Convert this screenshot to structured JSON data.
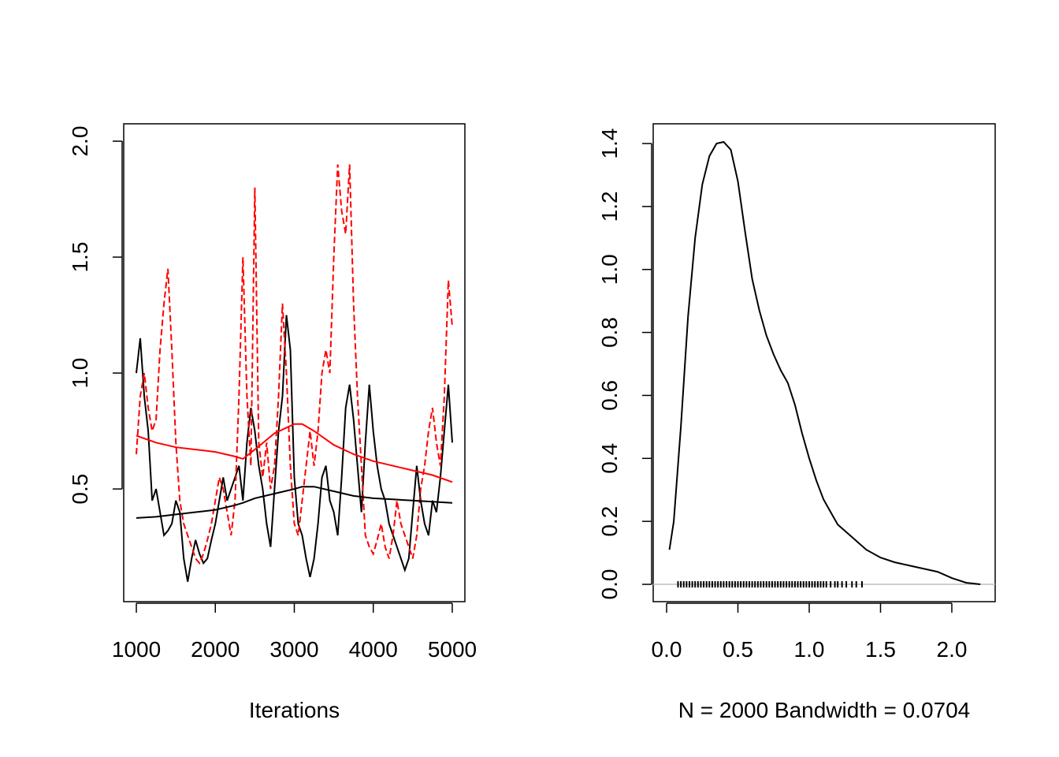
{
  "chart_data": [
    {
      "type": "line",
      "xlabel": "Iterations",
      "xlim": [
        840,
        5160
      ],
      "ylim": [
        0.014,
        2.075
      ],
      "xticks": [
        1000,
        2000,
        3000,
        4000,
        5000
      ],
      "yticks": [
        0.5,
        {
          "value": 1,
          "label": "1.0"
        },
        1.5,
        {
          "value": 2,
          "label": "2.0"
        }
      ],
      "x": [
        1000,
        1050,
        1100,
        1150,
        1200,
        1250,
        1300,
        1350,
        1400,
        1450,
        1500,
        1550,
        1600,
        1650,
        1700,
        1750,
        1800,
        1850,
        1900,
        1950,
        2000,
        2050,
        2100,
        2150,
        2200,
        2250,
        2300,
        2350,
        2400,
        2450,
        2500,
        2550,
        2600,
        2650,
        2700,
        2750,
        2800,
        2850,
        2900,
        2950,
        3000,
        3050,
        3100,
        3150,
        3200,
        3250,
        3300,
        3350,
        3400,
        3450,
        3500,
        3550,
        3600,
        3650,
        3700,
        3750,
        3800,
        3850,
        3900,
        3950,
        4000,
        4050,
        4100,
        4150,
        4200,
        4250,
        4300,
        4350,
        4400,
        4450,
        4500,
        4550,
        4600,
        4650,
        4700,
        4750,
        4800,
        4850,
        4900,
        4950,
        5000
      ],
      "series": [
        {
          "color": "#000000",
          "linestyle": "solid",
          "values": [
            1.0,
            1.15,
            0.9,
            0.75,
            0.45,
            0.5,
            0.4,
            0.3,
            0.32,
            0.35,
            0.45,
            0.4,
            0.2,
            0.1,
            0.2,
            0.28,
            0.22,
            0.18,
            0.2,
            0.28,
            0.35,
            0.45,
            0.55,
            0.45,
            0.5,
            0.55,
            0.6,
            0.45,
            0.7,
            0.85,
            0.75,
            0.6,
            0.5,
            0.35,
            0.25,
            0.5,
            0.75,
            0.9,
            1.25,
            1.1,
            0.55,
            0.35,
            0.3,
            0.2,
            0.12,
            0.2,
            0.35,
            0.55,
            0.6,
            0.45,
            0.4,
            0.3,
            0.55,
            0.85,
            0.95,
            0.8,
            0.6,
            0.4,
            0.7,
            0.95,
            0.75,
            0.6,
            0.5,
            0.45,
            0.35,
            0.3,
            0.25,
            0.2,
            0.15,
            0.2,
            0.4,
            0.6,
            0.45,
            0.35,
            0.3,
            0.45,
            0.4,
            0.55,
            0.75,
            0.95,
            0.7
          ]
        },
        {
          "color": "#ff0000",
          "linestyle": "dashed",
          "values": [
            0.65,
            0.9,
            1.0,
            0.85,
            0.75,
            0.8,
            1.1,
            1.3,
            1.45,
            1.1,
            0.7,
            0.45,
            0.35,
            0.3,
            0.25,
            0.2,
            0.18,
            0.22,
            0.28,
            0.35,
            0.45,
            0.55,
            0.5,
            0.4,
            0.3,
            0.45,
            0.9,
            1.5,
            0.9,
            0.6,
            1.8,
            0.7,
            0.55,
            0.7,
            0.5,
            0.6,
            0.9,
            1.3,
            1.0,
            0.6,
            0.35,
            0.3,
            0.45,
            0.6,
            0.75,
            0.6,
            0.75,
            1.0,
            1.1,
            1.0,
            1.5,
            1.9,
            1.7,
            1.6,
            1.9,
            1.3,
            0.9,
            0.6,
            0.3,
            0.25,
            0.22,
            0.28,
            0.35,
            0.25,
            0.2,
            0.3,
            0.45,
            0.35,
            0.3,
            0.25,
            0.2,
            0.3,
            0.5,
            0.6,
            0.75,
            0.85,
            0.7,
            0.6,
            0.9,
            1.4,
            1.2
          ]
        },
        {
          "color": "#000000",
          "linestyle": "solid",
          "x": [
            1000,
            1250,
            1500,
            1750,
            2000,
            2250,
            2350,
            2500,
            2750,
            3000,
            3100,
            3250,
            3500,
            3750,
            4000,
            4250,
            4500,
            4750,
            5000
          ],
          "values": [
            0.375,
            0.38,
            0.39,
            0.4,
            0.41,
            0.43,
            0.44,
            0.46,
            0.48,
            0.5,
            0.51,
            0.51,
            0.49,
            0.47,
            0.46,
            0.455,
            0.45,
            0.445,
            0.44
          ]
        },
        {
          "color": "#ff0000",
          "linestyle": "solid",
          "x": [
            1000,
            1250,
            1500,
            1750,
            2000,
            2250,
            2350,
            2500,
            2750,
            3000,
            3100,
            3250,
            3500,
            3750,
            4000,
            4250,
            4500,
            4750,
            5000
          ],
          "values": [
            0.73,
            0.7,
            0.68,
            0.67,
            0.66,
            0.64,
            0.63,
            0.67,
            0.74,
            0.78,
            0.78,
            0.75,
            0.69,
            0.65,
            0.62,
            0.6,
            0.58,
            0.56,
            0.53
          ]
        }
      ]
    },
    {
      "type": "density",
      "xlabel": "N = 2000   Bandwidth = 0.0704",
      "xlim": [
        -0.094,
        2.304
      ],
      "ylim": [
        -0.055,
        1.4626
      ],
      "xticks": [
        {
          "value": 0,
          "label": "0.0"
        },
        0.5,
        {
          "value": 1,
          "label": "1.0"
        },
        1.5,
        {
          "value": 2,
          "label": "2.0"
        }
      ],
      "yticks": [
        {
          "value": 0,
          "label": "0.0"
        },
        0.2,
        0.4,
        0.6,
        0.8,
        {
          "value": 1,
          "label": "1.0"
        },
        1.2,
        1.4
      ],
      "x": [
        0.02,
        0.05,
        0.1,
        0.15,
        0.2,
        0.25,
        0.3,
        0.35,
        0.4,
        0.45,
        0.5,
        0.55,
        0.6,
        0.65,
        0.7,
        0.75,
        0.8,
        0.85,
        0.9,
        0.95,
        1.0,
        1.05,
        1.1,
        1.15,
        1.2,
        1.3,
        1.4,
        1.5,
        1.6,
        1.7,
        1.8,
        1.9,
        2.0,
        2.1,
        2.2
      ],
      "series": [
        {
          "color": "#000000",
          "linestyle": "solid",
          "values": [
            0.11,
            0.2,
            0.5,
            0.85,
            1.1,
            1.27,
            1.36,
            1.4,
            1.405,
            1.38,
            1.28,
            1.12,
            0.97,
            0.87,
            0.79,
            0.73,
            0.68,
            0.64,
            0.57,
            0.48,
            0.4,
            0.33,
            0.27,
            0.23,
            0.19,
            0.15,
            0.11,
            0.085,
            0.07,
            0.06,
            0.05,
            0.04,
            0.02,
            0.005,
            0.0
          ]
        }
      ],
      "rug": [
        0.08,
        0.1,
        0.12,
        0.14,
        0.16,
        0.18,
        0.2,
        0.22,
        0.24,
        0.26,
        0.28,
        0.3,
        0.32,
        0.34,
        0.36,
        0.38,
        0.4,
        0.42,
        0.44,
        0.46,
        0.48,
        0.5,
        0.52,
        0.54,
        0.56,
        0.58,
        0.6,
        0.62,
        0.64,
        0.66,
        0.68,
        0.7,
        0.72,
        0.74,
        0.76,
        0.78,
        0.8,
        0.82,
        0.84,
        0.86,
        0.88,
        0.9,
        0.92,
        0.94,
        0.96,
        0.98,
        1.0,
        1.02,
        1.04,
        1.06,
        1.08,
        1.1,
        1.12,
        1.15,
        1.18,
        1.2,
        1.23,
        1.26,
        1.3,
        1.33,
        1.37
      ]
    }
  ]
}
